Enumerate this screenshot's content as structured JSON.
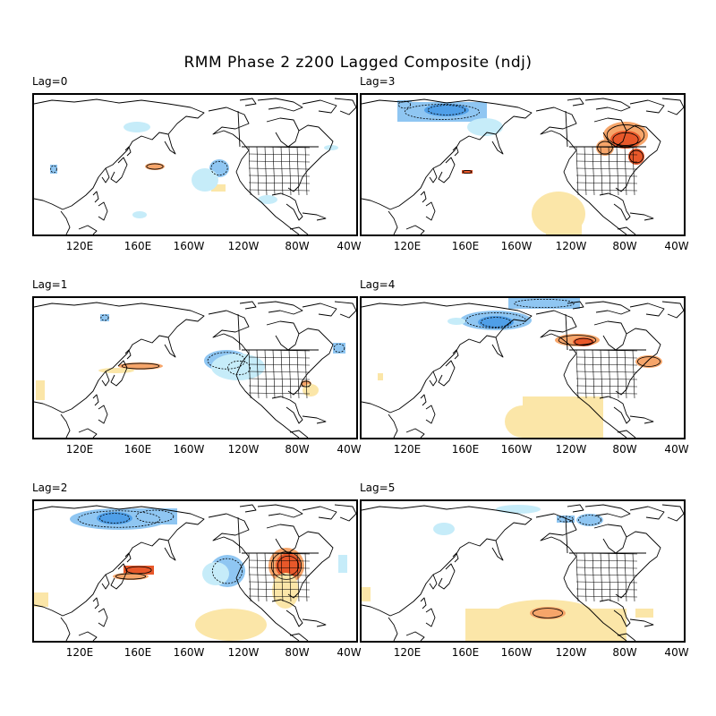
{
  "title": "RMM Phase 2 z200 Lagged Composite (ndj)",
  "lon_ticks": [
    "120E",
    "160E",
    "160W",
    "120W",
    "80W",
    "40W"
  ],
  "colors": {
    "neg_light": "#c6ecf9",
    "neg_mid": "#8fc6f2",
    "neg_dark": "#4f9fe8",
    "pos_light": "#fbe6a8",
    "pos_mid": "#f6a56a",
    "pos_dark": "#e8582a",
    "coast": "#000000"
  },
  "panels": [
    {
      "id": "lag0",
      "label": "Lag=0"
    },
    {
      "id": "lag3",
      "label": "Lag=3"
    },
    {
      "id": "lag1",
      "label": "Lag=1"
    },
    {
      "id": "lag4",
      "label": "Lag=4"
    },
    {
      "id": "lag2",
      "label": "Lag=2"
    },
    {
      "id": "lag5",
      "label": "Lag=5"
    }
  ]
}
